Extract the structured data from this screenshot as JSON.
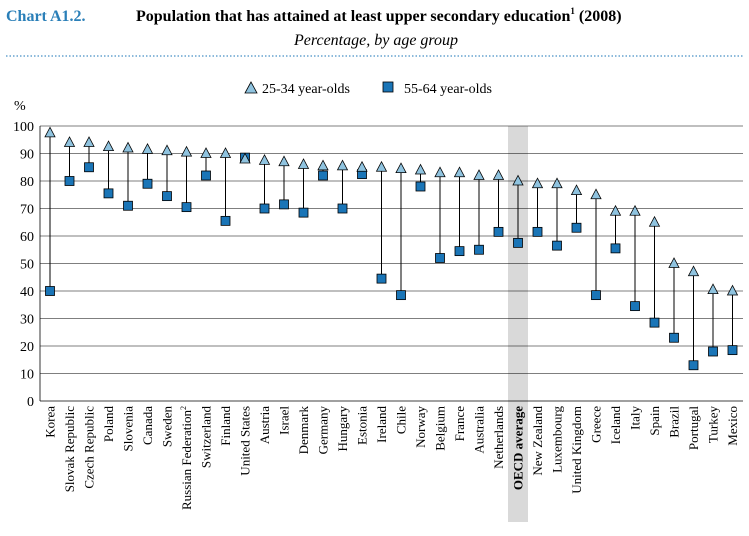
{
  "header": {
    "chart_label": "Chart A1.2.",
    "title": "Population that has attained at least upper secondary education",
    "title_sup": "1",
    "title_year": "(2008)",
    "subtitle": "Percentage, by age group"
  },
  "colors": {
    "triangle_fill": "#8fc3df",
    "square_fill": "#1a75b7",
    "highlight_band": "#d9d9d9",
    "connector": "#000000"
  },
  "chart_data": {
    "type": "scatter",
    "ylabel": "%",
    "ylim": [
      0,
      100
    ],
    "yticks": [
      0,
      10,
      20,
      30,
      40,
      50,
      60,
      70,
      80,
      90,
      100
    ],
    "grid": true,
    "legend_position": "top-center",
    "categories": [
      "Korea",
      "Slovak Republic",
      "Czech Republic",
      "Poland",
      "Slovenia",
      "Canada",
      "Sweden",
      "Russian Federation",
      "Switzerland",
      "Finland",
      "United States",
      "Austria",
      "Israel",
      "Denmark",
      "Germany",
      "Hungary",
      "Estonia",
      "Ireland",
      "Chile",
      "Norway",
      "Belgium",
      "France",
      "Australia",
      "Netherlands",
      "OECD average",
      "New Zealand",
      "Luxembourg",
      "United Kingdom",
      "Greece",
      "Iceland",
      "Italy",
      "Spain",
      "Brazil",
      "Portugal",
      "Turkey",
      "Mexico"
    ],
    "category_superscripts": {
      "Russian Federation": "2"
    },
    "highlight_category": "OECD average",
    "series": [
      {
        "name": "25-34 year-olds",
        "marker": "triangle",
        "values": [
          97.5,
          94,
          94,
          92.5,
          92,
          91.5,
          91,
          90.5,
          90,
          90,
          88,
          87.5,
          87,
          86,
          85.5,
          85.5,
          85,
          85,
          84.5,
          84,
          83,
          83,
          82,
          82,
          80,
          79,
          79,
          76.5,
          75,
          69,
          69,
          65,
          50,
          47,
          40.5,
          40
        ]
      },
      {
        "name": "55-64 year-olds",
        "marker": "square",
        "values": [
          40,
          80,
          85,
          75.5,
          71,
          79,
          74.5,
          70.5,
          82,
          65.5,
          88.5,
          70,
          71.5,
          68.5,
          82,
          70,
          82.5,
          44.5,
          38.5,
          78,
          52,
          54.5,
          55,
          61.5,
          57.5,
          61.5,
          56.5,
          63,
          38.5,
          55.5,
          34.5,
          28.5,
          23,
          13,
          18,
          18.5
        ]
      }
    ]
  }
}
